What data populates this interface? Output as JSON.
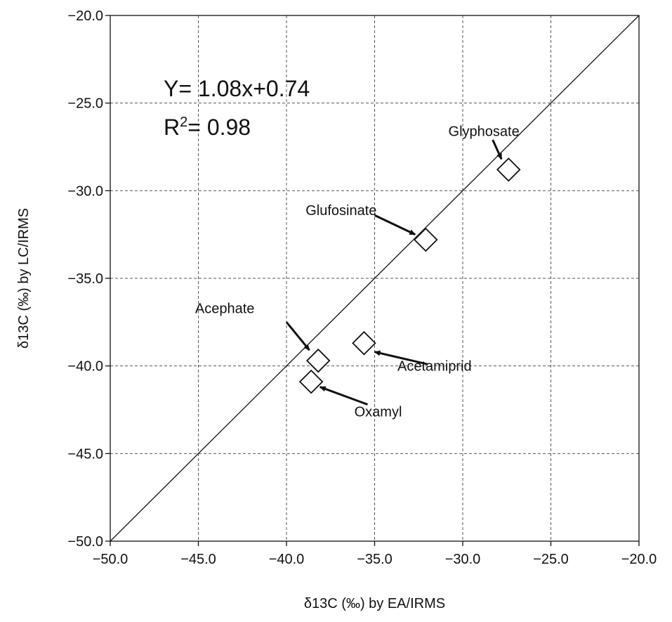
{
  "chart_data": {
    "type": "scatter",
    "xlabel": "δ13C (‰) by EA/IRMS",
    "ylabel": "δ13C (‰) by LC/IRMS",
    "xlim": [
      -50.0,
      -20.0
    ],
    "ylim": [
      -50.0,
      -20.0
    ],
    "xticks": [
      "−50.0",
      "−45.0",
      "−40.0",
      "−35.0",
      "−30.0",
      "−25.0",
      "−20.0"
    ],
    "yticks": [
      "−50.0",
      "−45.0",
      "−40.0",
      "−35.0",
      "−30.0",
      "−25.0",
      "−20.0"
    ],
    "xtick_values": [
      -50,
      -45,
      -40,
      -35,
      -30,
      -25,
      -20
    ],
    "ytick_values": [
      -50,
      -45,
      -40,
      -35,
      -30,
      -25,
      -20
    ],
    "grid": true,
    "marker": "diamond",
    "reference_line": {
      "from": [
        -50,
        -50
      ],
      "to": [
        -20,
        -20
      ]
    },
    "equation": {
      "line1": "Y= 1.08x+0.74",
      "line2_prefix": "R",
      "line2_sup": "2",
      "line2_suffix": "= 0.98"
    },
    "points": [
      {
        "name": "Glyphosate",
        "x": -27.4,
        "y": -28.8,
        "label_x": -28.8,
        "label_y": -26.6,
        "arrow_from": [
          -28.3,
          -27.1
        ],
        "arrow_to": [
          -27.8,
          -28.2
        ]
      },
      {
        "name": "Glufosinate",
        "x": -32.1,
        "y": -32.8,
        "label_x": -36.9,
        "label_y": -31.1,
        "arrow_from": [
          -35.0,
          -31.4
        ],
        "arrow_to": [
          -32.7,
          -32.5
        ]
      },
      {
        "name": "Acephate",
        "x": -38.2,
        "y": -39.7,
        "label_x": -43.5,
        "label_y": -36.7,
        "arrow_from": [
          -40.0,
          -37.5
        ],
        "arrow_to": [
          -38.7,
          -39.1
        ]
      },
      {
        "name": "Acetamiprid",
        "x": -35.6,
        "y": -38.7,
        "label_x": -31.6,
        "label_y": -40.0,
        "arrow_from": [
          -32.0,
          -39.9
        ],
        "arrow_to": [
          -35.0,
          -39.2
        ]
      },
      {
        "name": "Oxamyl",
        "x": -38.6,
        "y": -40.9,
        "label_x": -34.8,
        "label_y": -42.6,
        "arrow_from": [
          -35.4,
          -42.2
        ],
        "arrow_to": [
          -38.1,
          -41.2
        ]
      }
    ]
  }
}
